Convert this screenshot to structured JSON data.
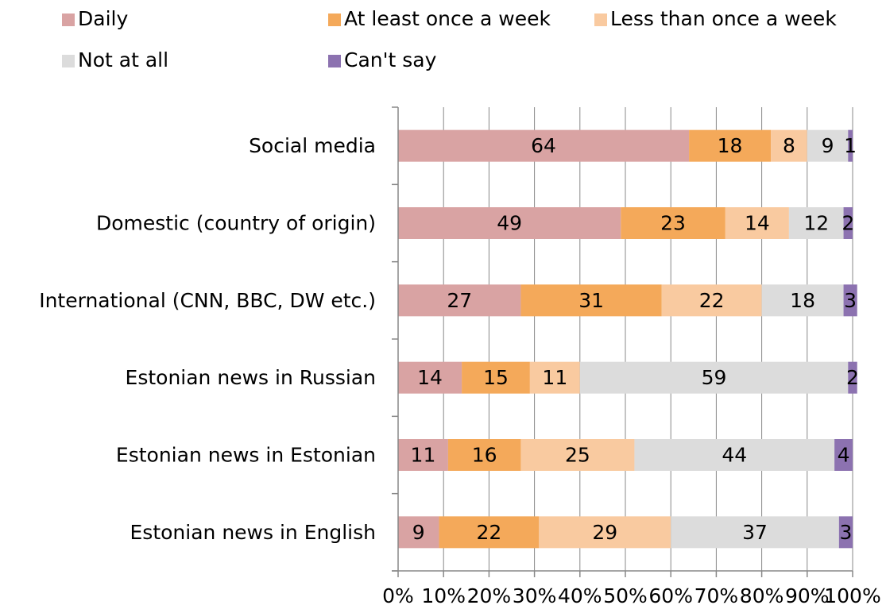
{
  "chart_data": {
    "type": "bar",
    "orientation": "horizontal",
    "stacked": "100%",
    "categories": [
      "Social media",
      "Domestic (country of origin)",
      "International (CNN, BBC, DW etc.)",
      "Estonian news in Russian",
      "Estonian news in Estonian",
      "Estonian news in English"
    ],
    "series": [
      {
        "name": "Daily",
        "color": "#d9a3a3",
        "values": [
          64,
          49,
          27,
          14,
          11,
          9
        ]
      },
      {
        "name": "At least once a week",
        "color": "#f4a95a",
        "values": [
          18,
          23,
          31,
          15,
          16,
          22
        ]
      },
      {
        "name": "Less than once a week",
        "color": "#f9caa0",
        "values": [
          8,
          14,
          22,
          11,
          25,
          29
        ]
      },
      {
        "name": "Not at all",
        "color": "#dcdcdc",
        "values": [
          9,
          12,
          18,
          59,
          44,
          37
        ]
      },
      {
        "name": "Can't say",
        "color": "#8c72b0",
        "values": [
          1,
          2,
          3,
          2,
          4,
          3
        ]
      }
    ],
    "x_ticks": [
      "0%",
      "10%",
      "20%",
      "30%",
      "40%",
      "50%",
      "60%",
      "70%",
      "80%",
      "90%",
      "100%"
    ],
    "xlim": [
      0,
      100
    ],
    "grid": true,
    "legend_position": "top"
  }
}
